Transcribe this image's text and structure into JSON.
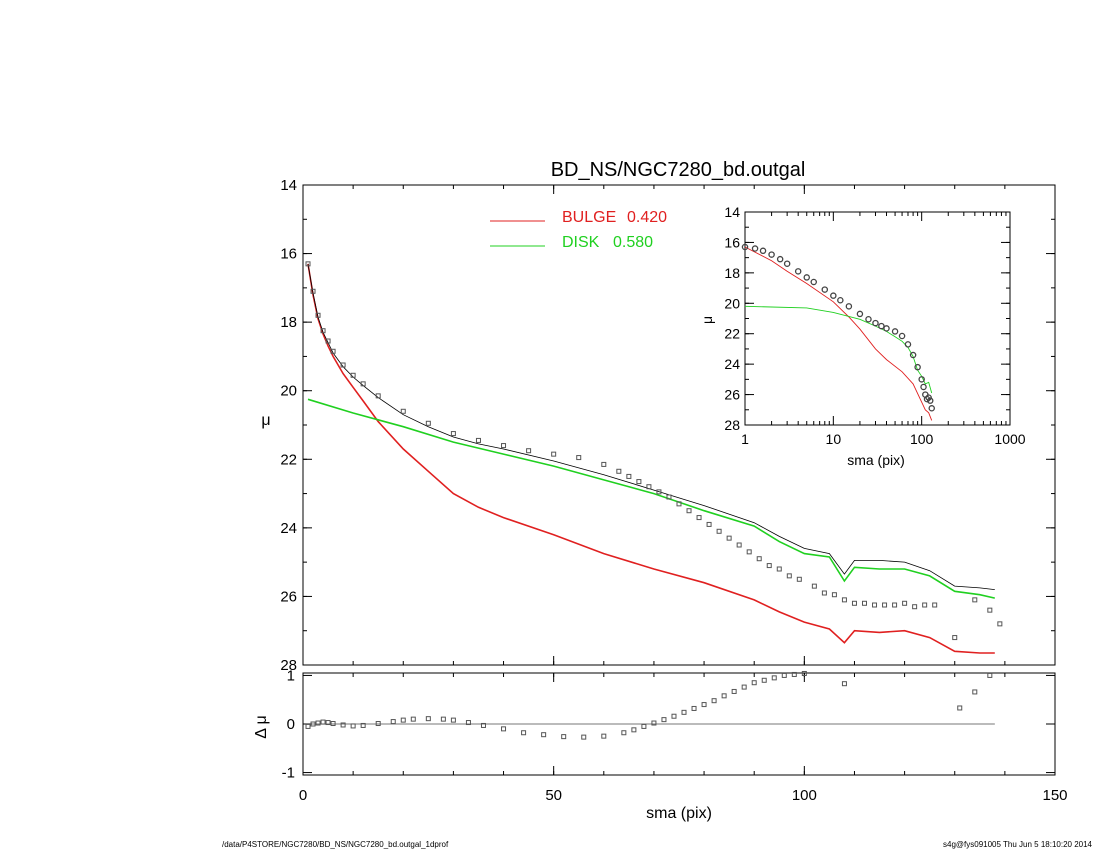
{
  "title": "BD_NS/NGC7280_bd.outgal",
  "footer": {
    "path": "/data/P4STORE/NGC7280/BD_NS/NGC7280_bd.outgal_1dprof",
    "stamp": "s4g@fys091005  Thu Jun  5 18:10:20 2014"
  },
  "legend": {
    "bulge": {
      "label": "BULGE",
      "value": "0.420",
      "color": "#e02020"
    },
    "disk": {
      "label": "DISK",
      "value": "0.580",
      "color": "#20d020"
    }
  },
  "chart_data": [
    {
      "type": "line",
      "panel": "main",
      "xlabel": "",
      "ylabel": "μ",
      "xlim": [
        0,
        150
      ],
      "ylim": [
        28,
        14
      ],
      "y_reversed": true,
      "x_ticks": [
        0,
        50,
        100,
        150
      ],
      "y_ticks": [
        14,
        16,
        18,
        20,
        22,
        24,
        26,
        28
      ],
      "series": [
        {
          "name": "BULGE",
          "color": "#e02020",
          "x": [
            1,
            2,
            3,
            4,
            5,
            6,
            8,
            10,
            12,
            15,
            20,
            25,
            30,
            35,
            40,
            50,
            60,
            70,
            80,
            90,
            95,
            100,
            105,
            108,
            110,
            115,
            120,
            125,
            130,
            135,
            138
          ],
          "y": [
            16.3,
            17.2,
            17.9,
            18.35,
            18.7,
            19.0,
            19.5,
            19.9,
            20.3,
            20.9,
            21.7,
            22.35,
            23.0,
            23.4,
            23.7,
            24.2,
            24.75,
            25.2,
            25.6,
            26.1,
            26.45,
            26.75,
            26.95,
            27.35,
            27.0,
            27.05,
            27.0,
            27.2,
            27.6,
            27.65,
            27.65
          ]
        },
        {
          "name": "DISK",
          "color": "#20d020",
          "x": [
            1,
            10,
            20,
            30,
            40,
            50,
            60,
            70,
            80,
            90,
            95,
            100,
            105,
            108,
            110,
            115,
            120,
            125,
            130,
            135,
            138
          ],
          "y": [
            20.25,
            20.65,
            21.05,
            21.5,
            21.85,
            22.2,
            22.6,
            23.0,
            23.5,
            23.95,
            24.4,
            24.75,
            24.85,
            25.55,
            25.15,
            25.2,
            25.2,
            25.4,
            25.85,
            25.95,
            26.05
          ]
        },
        {
          "name": "Model",
          "color": "#000000",
          "x": [
            1,
            2,
            3,
            4,
            5,
            6,
            8,
            10,
            12,
            15,
            20,
            25,
            30,
            35,
            40,
            50,
            60,
            70,
            80,
            90,
            95,
            100,
            105,
            108,
            110,
            115,
            120,
            125,
            130,
            135,
            138
          ],
          "y": [
            16.3,
            17.15,
            17.85,
            18.3,
            18.6,
            18.9,
            19.3,
            19.6,
            19.85,
            20.2,
            20.7,
            21.05,
            21.35,
            21.55,
            21.7,
            22.05,
            22.45,
            22.9,
            23.35,
            23.85,
            24.25,
            24.6,
            24.75,
            25.35,
            24.95,
            24.95,
            25.0,
            25.25,
            25.7,
            25.75,
            25.8
          ]
        },
        {
          "name": "Data",
          "color": "#555555",
          "marker": "square",
          "x": [
            1,
            2,
            3,
            4,
            5,
            6,
            8,
            10,
            12,
            15,
            20,
            25,
            30,
            35,
            40,
            45,
            50,
            55,
            60,
            63,
            65,
            67,
            69,
            71,
            73,
            75,
            77,
            79,
            81,
            83,
            85,
            87,
            89,
            91,
            93,
            95,
            97,
            99,
            102,
            104,
            106,
            108,
            110,
            112,
            114,
            116,
            118,
            120,
            122,
            124,
            126,
            130,
            134,
            137,
            139
          ],
          "y": [
            16.3,
            17.1,
            17.8,
            18.25,
            18.55,
            18.85,
            19.25,
            19.55,
            19.8,
            20.15,
            20.6,
            20.95,
            21.25,
            21.45,
            21.6,
            21.75,
            21.85,
            21.95,
            22.15,
            22.35,
            22.5,
            22.65,
            22.8,
            22.95,
            23.1,
            23.3,
            23.5,
            23.7,
            23.9,
            24.1,
            24.3,
            24.5,
            24.7,
            24.9,
            25.1,
            25.2,
            25.4,
            25.5,
            25.7,
            25.9,
            25.95,
            26.1,
            26.2,
            26.2,
            26.25,
            26.25,
            26.25,
            26.2,
            26.3,
            26.25,
            26.25,
            27.2,
            26.1,
            26.4,
            26.8
          ]
        }
      ]
    },
    {
      "type": "scatter",
      "panel": "residual",
      "xlabel": "sma (pix)",
      "ylabel": "Δ μ",
      "xlim": [
        0,
        150
      ],
      "ylim": [
        -1.05,
        1.05
      ],
      "x_ticks": [
        0,
        50,
        100,
        150
      ],
      "y_ticks": [
        -1,
        0,
        1
      ],
      "series": [
        {
          "name": "Residual",
          "color": "#555555",
          "marker": "square",
          "x": [
            1,
            2,
            3,
            4,
            5,
            6,
            8,
            10,
            12,
            15,
            18,
            20,
            22,
            25,
            28,
            30,
            33,
            36,
            40,
            44,
            48,
            52,
            56,
            60,
            64,
            66,
            68,
            70,
            72,
            74,
            76,
            78,
            80,
            82,
            84,
            86,
            88,
            90,
            92,
            94,
            96,
            98,
            100,
            108,
            131,
            134,
            137
          ],
          "y": [
            -0.05,
            0.0,
            0.02,
            0.04,
            0.03,
            0.01,
            -0.02,
            -0.04,
            -0.03,
            0.01,
            0.05,
            0.08,
            0.1,
            0.11,
            0.1,
            0.08,
            0.03,
            -0.03,
            -0.1,
            -0.18,
            -0.22,
            -0.26,
            -0.27,
            -0.25,
            -0.18,
            -0.12,
            -0.05,
            0.02,
            0.09,
            0.16,
            0.24,
            0.32,
            0.4,
            0.48,
            0.58,
            0.67,
            0.76,
            0.85,
            0.9,
            0.95,
            1.0,
            1.02,
            1.04,
            0.83,
            0.33,
            0.66,
            1.0
          ]
        }
      ]
    },
    {
      "type": "line",
      "panel": "inset",
      "xlabel": "sma (pix)",
      "ylabel": "μ",
      "x_scale": "log",
      "xlim": [
        1,
        1000
      ],
      "ylim": [
        28,
        14
      ],
      "y_reversed": true,
      "x_ticks": [
        1,
        10,
        100,
        1000
      ],
      "y_ticks": [
        14,
        16,
        18,
        20,
        22,
        24,
        26,
        28
      ],
      "series": [
        {
          "name": "BULGE",
          "color": "#e02020",
          "x": [
            1,
            2,
            3,
            5,
            10,
            15,
            20,
            30,
            40,
            60,
            80,
            100,
            110,
            120,
            130
          ],
          "y": [
            16.3,
            17.2,
            17.9,
            18.7,
            19.9,
            20.9,
            21.7,
            23.0,
            23.7,
            24.5,
            25.3,
            26.5,
            27.0,
            27.2,
            27.7
          ]
        },
        {
          "name": "DISK",
          "color": "#20d020",
          "x": [
            1,
            5,
            10,
            20,
            30,
            40,
            50,
            60,
            70,
            80,
            90,
            100,
            110,
            120,
            130
          ],
          "y": [
            20.2,
            20.3,
            20.6,
            21.05,
            21.5,
            21.85,
            22.2,
            22.5,
            22.9,
            23.5,
            24.4,
            24.8,
            25.3,
            25.2,
            25.9
          ]
        },
        {
          "name": "Data",
          "color": "#444444",
          "marker": "circle",
          "x": [
            1,
            1.3,
            1.6,
            2,
            2.5,
            3,
            4,
            5,
            6,
            8,
            10,
            12,
            15,
            20,
            25,
            30,
            35,
            40,
            50,
            60,
            70,
            80,
            90,
            100,
            105,
            110,
            115,
            120,
            125,
            130
          ],
          "y": [
            16.3,
            16.4,
            16.55,
            16.8,
            17.1,
            17.4,
            17.9,
            18.3,
            18.6,
            19.1,
            19.5,
            19.8,
            20.2,
            20.7,
            21.05,
            21.3,
            21.5,
            21.65,
            21.85,
            22.15,
            22.7,
            23.4,
            24.2,
            25.0,
            25.5,
            26.0,
            26.3,
            26.2,
            26.4,
            26.9
          ]
        }
      ]
    }
  ]
}
